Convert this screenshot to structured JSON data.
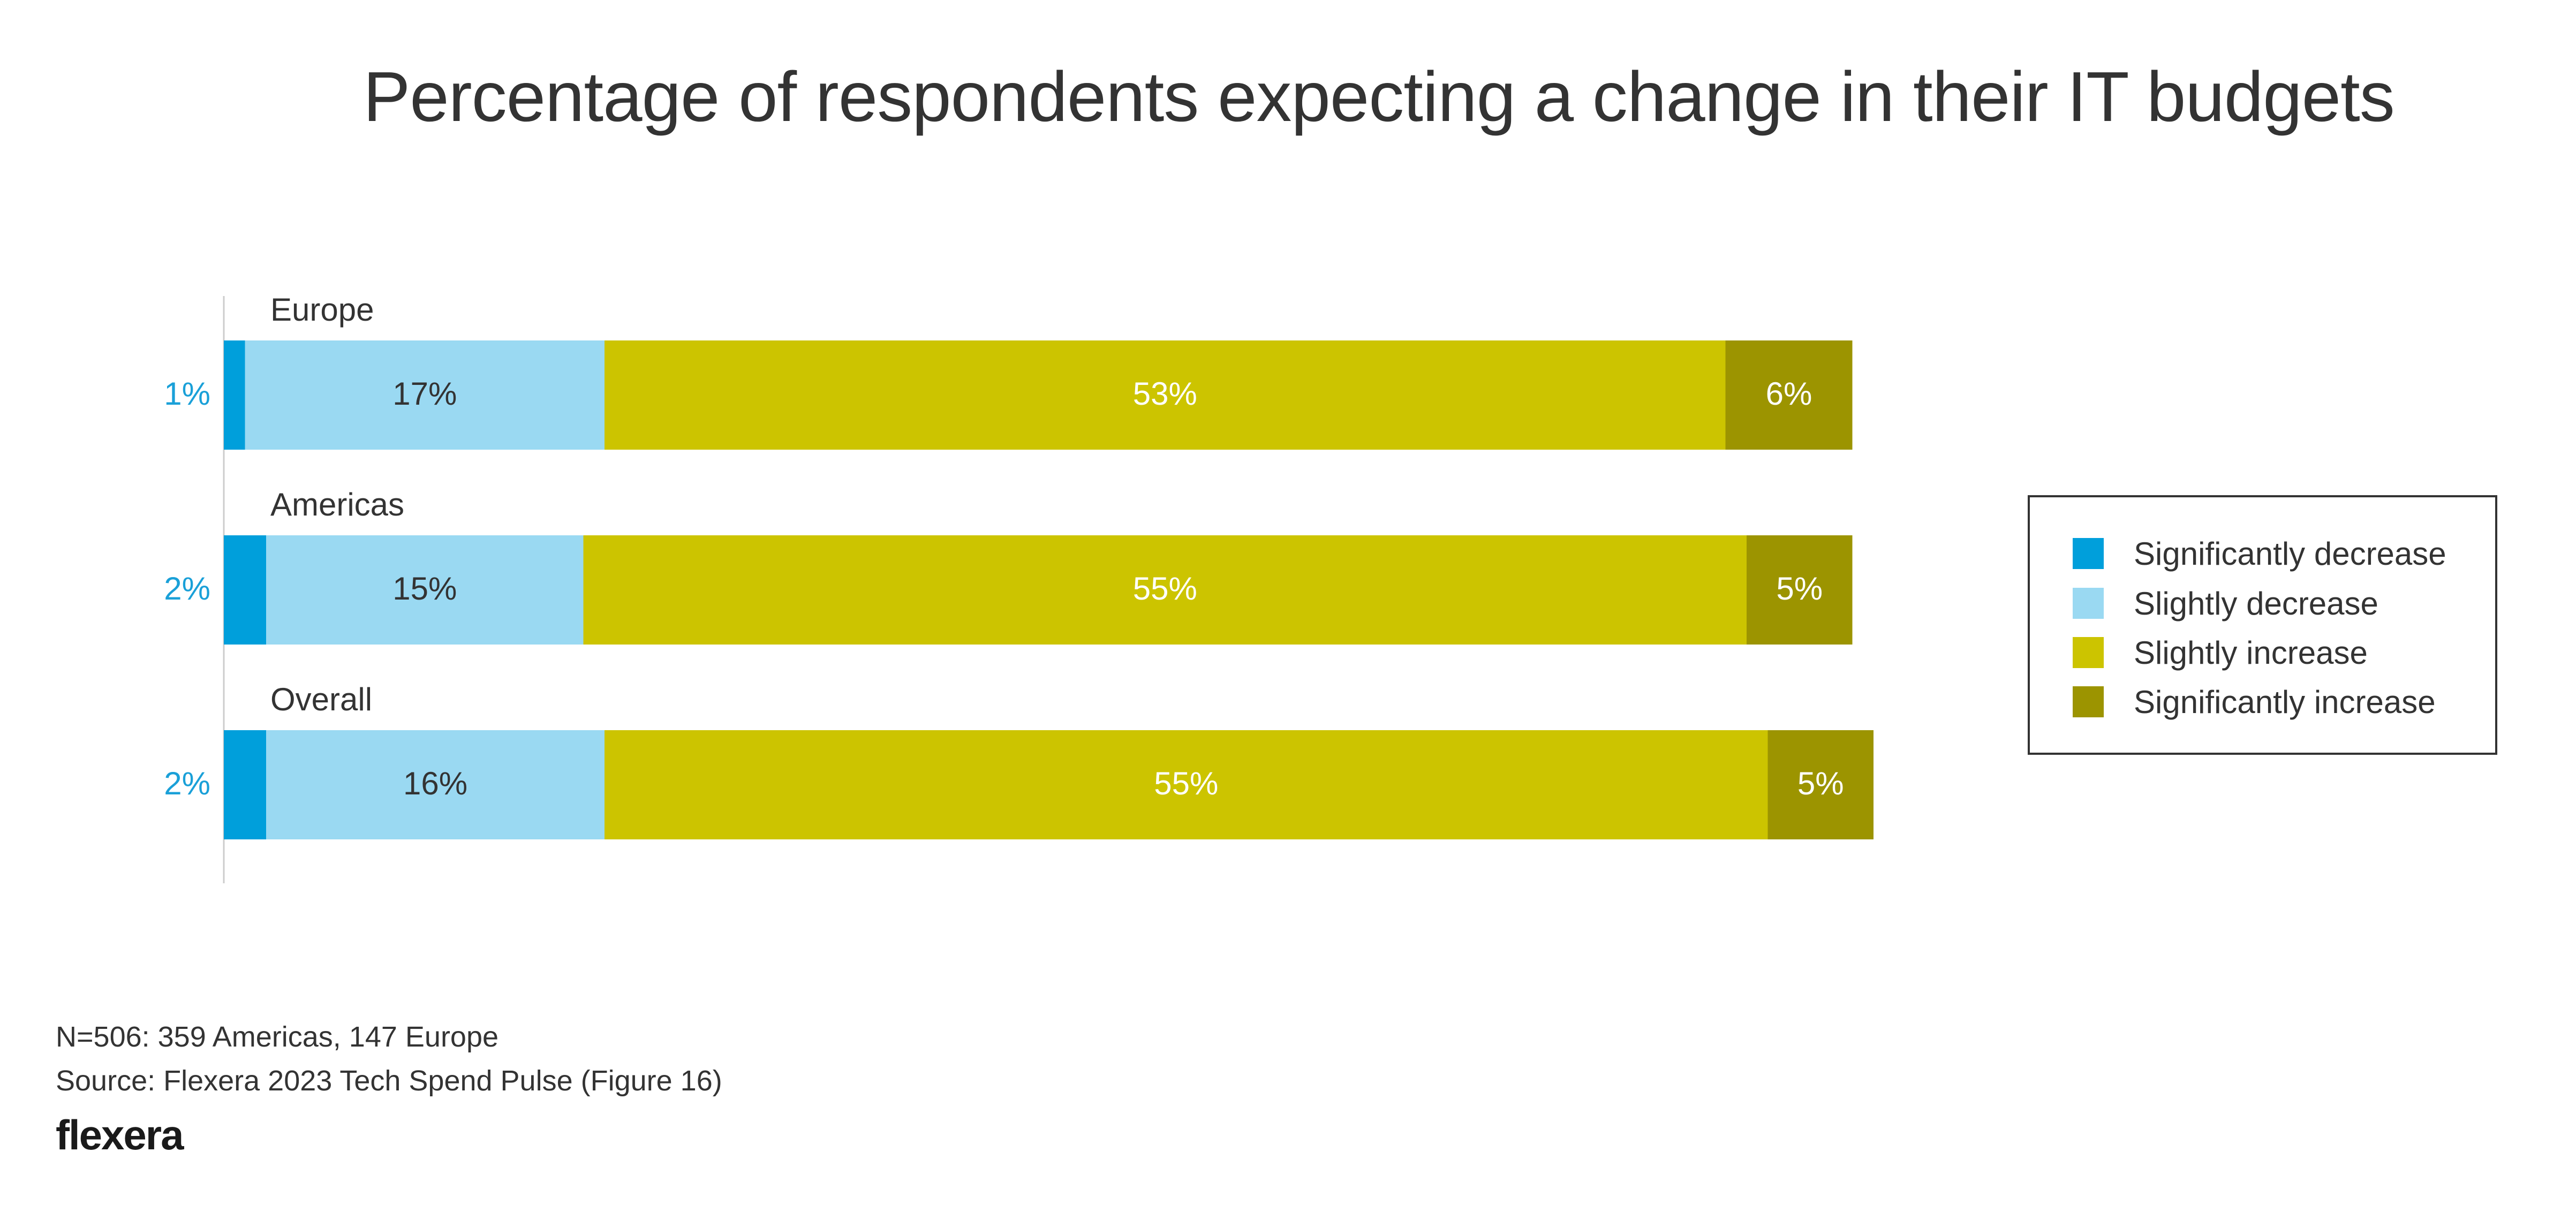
{
  "chart_data": {
    "type": "bar",
    "orientation": "horizontal",
    "stacked": true,
    "title": "Percentage of respondents expecting a change in their IT budgets",
    "categories": [
      "Europe",
      "Americas",
      "Overall"
    ],
    "series": [
      {
        "name": "Significantly decrease",
        "color": "#009fdb",
        "values": [
          1,
          2,
          2
        ],
        "labels": [
          "1%",
          "2%",
          "2%"
        ],
        "label_color": "#1aa0d8"
      },
      {
        "name": "Slightly decrease",
        "color": "#9ad9f2",
        "values": [
          17,
          15,
          16
        ],
        "labels": [
          "17%",
          "15%",
          "16%"
        ],
        "label_color": "#333333"
      },
      {
        "name": "Slightly increase",
        "color": "#ccc400",
        "values": [
          53,
          55,
          55
        ],
        "labels": [
          "53%",
          "55%",
          "55%"
        ],
        "label_color": "#ffffff"
      },
      {
        "name": "Significantly increase",
        "color": "#9c9400",
        "values": [
          6,
          5,
          5
        ],
        "labels": [
          "6%",
          "5%",
          "5%"
        ],
        "label_color": "#ffffff"
      }
    ],
    "legend_position": "right",
    "grid": false
  },
  "legend": {
    "items": [
      {
        "label": "Significantly decrease",
        "color": "#009fdb"
      },
      {
        "label": "Slightly decrease",
        "color": "#9ad9f2"
      },
      {
        "label": "Slightly increase",
        "color": "#ccc400"
      },
      {
        "label": "Significantly increase",
        "color": "#9c9400"
      }
    ]
  },
  "footnotes": {
    "sample": "N=506: 359 Americas, 147 Europe",
    "source": "Source: Flexera 2023 Tech Spend Pulse (Figure 16)"
  },
  "brand": {
    "logo_text": "flexera"
  }
}
